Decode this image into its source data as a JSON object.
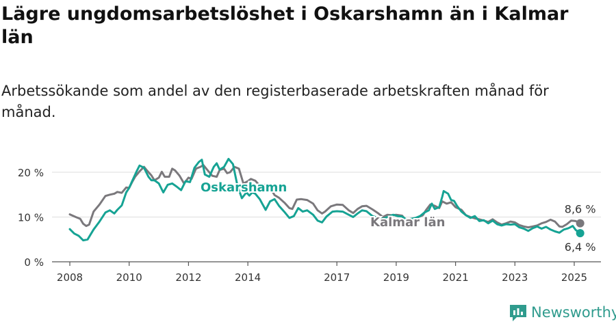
{
  "header": {
    "title": "Lägre ungdomsarbetslöshet i Oskarshamn än i Kalmar län",
    "subtitle": "Arbetssökande som andel av den registerbaserade arbetskraften månad för månad."
  },
  "brand": {
    "name": "Newsworthy",
    "icon": "newsworthy-logo-icon",
    "color": "#2f9b8d"
  },
  "chart_data": {
    "type": "line",
    "xlim": [
      2007.4,
      2025.9
    ],
    "ylim": [
      0,
      20
    ],
    "x_ticks": [
      2008,
      2010,
      2012,
      2014,
      2017,
      2019,
      2021,
      2023,
      2025
    ],
    "y_ticks": [
      {
        "value": 0,
        "label": "0 %"
      },
      {
        "value": 10,
        "label": "10 %"
      },
      {
        "value": 20,
        "label": "20 %"
      }
    ],
    "grid": true,
    "series": [
      {
        "name": "Kalmar län",
        "color": "#7a787c",
        "points": [
          [
            2008.0,
            10.6
          ],
          [
            2008.2,
            10.0
          ],
          [
            2008.35,
            9.6
          ],
          [
            2008.45,
            8.5
          ],
          [
            2008.55,
            8.0
          ],
          [
            2008.65,
            8.3
          ],
          [
            2008.8,
            11.2
          ],
          [
            2009.0,
            12.8
          ],
          [
            2009.2,
            14.7
          ],
          [
            2009.35,
            15.0
          ],
          [
            2009.5,
            15.2
          ],
          [
            2009.6,
            15.6
          ],
          [
            2009.75,
            15.4
          ],
          [
            2009.9,
            16.6
          ],
          [
            2010.0,
            16.5
          ],
          [
            2010.1,
            17.8
          ],
          [
            2010.2,
            19.0
          ],
          [
            2010.35,
            20.2
          ],
          [
            2010.5,
            21.2
          ],
          [
            2010.6,
            20.4
          ],
          [
            2010.75,
            19.3
          ],
          [
            2010.85,
            18.2
          ],
          [
            2011.0,
            18.8
          ],
          [
            2011.1,
            20.1
          ],
          [
            2011.2,
            19.0
          ],
          [
            2011.35,
            19.0
          ],
          [
            2011.45,
            20.8
          ],
          [
            2011.55,
            20.4
          ],
          [
            2011.7,
            19.2
          ],
          [
            2011.85,
            17.5
          ],
          [
            2012.0,
            18.8
          ],
          [
            2012.1,
            18.5
          ],
          [
            2012.25,
            20.8
          ],
          [
            2012.4,
            21.2
          ],
          [
            2012.5,
            21.6
          ],
          [
            2012.65,
            20.4
          ],
          [
            2012.8,
            19.2
          ],
          [
            2012.95,
            19.0
          ],
          [
            2013.05,
            20.5
          ],
          [
            2013.2,
            20.8
          ],
          [
            2013.3,
            19.8
          ],
          [
            2013.4,
            20.0
          ],
          [
            2013.55,
            21.2
          ],
          [
            2013.7,
            20.8
          ],
          [
            2013.85,
            17.5
          ],
          [
            2014.0,
            18.0
          ],
          [
            2014.1,
            18.5
          ],
          [
            2014.25,
            18.1
          ],
          [
            2014.4,
            17.0
          ],
          [
            2014.5,
            16.0
          ],
          [
            2014.6,
            17.3
          ],
          [
            2014.75,
            16.6
          ],
          [
            2014.9,
            14.9
          ],
          [
            2015.05,
            14.3
          ],
          [
            2015.25,
            13.1
          ],
          [
            2015.4,
            12.0
          ],
          [
            2015.5,
            11.8
          ],
          [
            2015.65,
            13.9
          ],
          [
            2015.8,
            14.0
          ],
          [
            2016.0,
            13.8
          ],
          [
            2016.2,
            13.0
          ],
          [
            2016.35,
            11.5
          ],
          [
            2016.5,
            10.8
          ],
          [
            2016.6,
            11.2
          ],
          [
            2016.8,
            12.4
          ],
          [
            2017.0,
            12.8
          ],
          [
            2017.2,
            12.7
          ],
          [
            2017.4,
            11.5
          ],
          [
            2017.55,
            10.9
          ],
          [
            2017.7,
            11.8
          ],
          [
            2017.85,
            12.4
          ],
          [
            2018.0,
            12.5
          ],
          [
            2018.2,
            11.7
          ],
          [
            2018.4,
            10.8
          ],
          [
            2018.55,
            10.0
          ],
          [
            2018.7,
            10.5
          ],
          [
            2018.85,
            10.4
          ],
          [
            2019.0,
            10.5
          ],
          [
            2019.2,
            10.3
          ],
          [
            2019.35,
            9.2
          ],
          [
            2019.5,
            9.0
          ],
          [
            2019.6,
            9.5
          ],
          [
            2019.75,
            10.0
          ],
          [
            2019.9,
            10.4
          ],
          [
            2020.0,
            11.5
          ],
          [
            2020.15,
            12.8
          ],
          [
            2020.3,
            12.5
          ],
          [
            2020.45,
            12.0
          ],
          [
            2020.55,
            13.5
          ],
          [
            2020.7,
            13.0
          ],
          [
            2020.85,
            13.3
          ],
          [
            2021.0,
            12.2
          ],
          [
            2021.2,
            11.6
          ],
          [
            2021.35,
            10.4
          ],
          [
            2021.5,
            10.0
          ],
          [
            2021.65,
            9.7
          ],
          [
            2021.8,
            9.5
          ],
          [
            2021.95,
            9.2
          ],
          [
            2022.1,
            8.9
          ],
          [
            2022.25,
            9.5
          ],
          [
            2022.4,
            8.8
          ],
          [
            2022.55,
            8.3
          ],
          [
            2022.7,
            8.6
          ],
          [
            2022.85,
            9.0
          ],
          [
            2023.0,
            8.8
          ],
          [
            2023.15,
            8.2
          ],
          [
            2023.3,
            7.9
          ],
          [
            2023.45,
            7.7
          ],
          [
            2023.6,
            7.9
          ],
          [
            2023.75,
            8.1
          ],
          [
            2023.9,
            8.6
          ],
          [
            2024.05,
            8.9
          ],
          [
            2024.2,
            9.4
          ],
          [
            2024.35,
            9.0
          ],
          [
            2024.5,
            7.9
          ],
          [
            2024.6,
            7.8
          ],
          [
            2024.75,
            8.4
          ],
          [
            2024.9,
            9.2
          ],
          [
            2025.05,
            9.1
          ],
          [
            2025.2,
            8.6
          ]
        ],
        "end_label": "8,6 %"
      },
      {
        "name": "Oskarshamn",
        "color": "#16a394",
        "points": [
          [
            2008.0,
            7.3
          ],
          [
            2008.15,
            6.3
          ],
          [
            2008.3,
            5.8
          ],
          [
            2008.45,
            4.8
          ],
          [
            2008.6,
            5.0
          ],
          [
            2008.8,
            7.2
          ],
          [
            2009.0,
            9.0
          ],
          [
            2009.2,
            11.0
          ],
          [
            2009.35,
            11.5
          ],
          [
            2009.5,
            10.8
          ],
          [
            2009.6,
            11.6
          ],
          [
            2009.75,
            12.6
          ],
          [
            2009.9,
            15.5
          ],
          [
            2010.0,
            16.5
          ],
          [
            2010.1,
            18.0
          ],
          [
            2010.25,
            20.2
          ],
          [
            2010.35,
            21.5
          ],
          [
            2010.5,
            21.0
          ],
          [
            2010.65,
            19.0
          ],
          [
            2010.75,
            18.2
          ],
          [
            2010.85,
            18.2
          ],
          [
            2011.0,
            17.5
          ],
          [
            2011.15,
            15.5
          ],
          [
            2011.3,
            17.2
          ],
          [
            2011.45,
            17.5
          ],
          [
            2011.6,
            16.8
          ],
          [
            2011.75,
            16.0
          ],
          [
            2011.9,
            18.0
          ],
          [
            2012.05,
            17.8
          ],
          [
            2012.2,
            21.0
          ],
          [
            2012.35,
            22.3
          ],
          [
            2012.45,
            22.8
          ],
          [
            2012.55,
            19.5
          ],
          [
            2012.7,
            19.0
          ],
          [
            2012.85,
            21.2
          ],
          [
            2012.95,
            22.0
          ],
          [
            2013.05,
            20.6
          ],
          [
            2013.2,
            21.2
          ],
          [
            2013.35,
            23.0
          ],
          [
            2013.5,
            21.8
          ],
          [
            2013.65,
            17.0
          ],
          [
            2013.8,
            14.2
          ],
          [
            2013.95,
            15.5
          ],
          [
            2014.05,
            14.8
          ],
          [
            2014.15,
            15.5
          ],
          [
            2014.25,
            15.2
          ],
          [
            2014.4,
            14.0
          ],
          [
            2014.5,
            12.8
          ],
          [
            2014.6,
            11.6
          ],
          [
            2014.75,
            13.5
          ],
          [
            2014.9,
            14.0
          ],
          [
            2015.05,
            12.5
          ],
          [
            2015.25,
            11.0
          ],
          [
            2015.4,
            9.8
          ],
          [
            2015.55,
            10.2
          ],
          [
            2015.7,
            12.0
          ],
          [
            2015.85,
            11.2
          ],
          [
            2016.0,
            11.5
          ],
          [
            2016.2,
            10.5
          ],
          [
            2016.35,
            9.2
          ],
          [
            2016.5,
            8.8
          ],
          [
            2016.65,
            10.1
          ],
          [
            2016.85,
            11.2
          ],
          [
            2017.0,
            11.3
          ],
          [
            2017.2,
            11.2
          ],
          [
            2017.4,
            10.5
          ],
          [
            2017.55,
            10.0
          ],
          [
            2017.7,
            10.8
          ],
          [
            2017.85,
            11.5
          ],
          [
            2018.0,
            11.3
          ],
          [
            2018.2,
            10.2
          ],
          [
            2018.4,
            9.8
          ],
          [
            2018.55,
            9.6
          ],
          [
            2018.7,
            10.0
          ],
          [
            2018.9,
            10.5
          ],
          [
            2019.05,
            10.2
          ],
          [
            2019.2,
            10.1
          ],
          [
            2019.35,
            9.4
          ],
          [
            2019.5,
            9.6
          ],
          [
            2019.65,
            9.8
          ],
          [
            2019.8,
            10.2
          ],
          [
            2019.95,
            11.0
          ],
          [
            2020.1,
            11.5
          ],
          [
            2020.2,
            13.0
          ],
          [
            2020.3,
            11.8
          ],
          [
            2020.45,
            12.2
          ],
          [
            2020.55,
            14.5
          ],
          [
            2020.6,
            15.8
          ],
          [
            2020.75,
            15.2
          ],
          [
            2020.85,
            13.8
          ],
          [
            2020.95,
            13.6
          ],
          [
            2021.05,
            12.5
          ],
          [
            2021.2,
            11.2
          ],
          [
            2021.35,
            10.4
          ],
          [
            2021.5,
            9.8
          ],
          [
            2021.65,
            10.2
          ],
          [
            2021.8,
            9.1
          ],
          [
            2021.95,
            9.3
          ],
          [
            2022.1,
            8.6
          ],
          [
            2022.25,
            9.2
          ],
          [
            2022.4,
            8.4
          ],
          [
            2022.55,
            8.1
          ],
          [
            2022.7,
            8.4
          ],
          [
            2022.85,
            8.3
          ],
          [
            2023.0,
            8.4
          ],
          [
            2023.15,
            7.7
          ],
          [
            2023.3,
            7.4
          ],
          [
            2023.45,
            6.9
          ],
          [
            2023.6,
            7.5
          ],
          [
            2023.75,
            7.9
          ],
          [
            2023.9,
            7.4
          ],
          [
            2024.05,
            7.8
          ],
          [
            2024.2,
            7.2
          ],
          [
            2024.35,
            6.8
          ],
          [
            2024.5,
            6.5
          ],
          [
            2024.65,
            7.2
          ],
          [
            2024.8,
            7.5
          ],
          [
            2024.95,
            8.0
          ],
          [
            2025.05,
            7.1
          ],
          [
            2025.2,
            6.4
          ]
        ],
        "end_label": "6,4 %"
      }
    ]
  }
}
